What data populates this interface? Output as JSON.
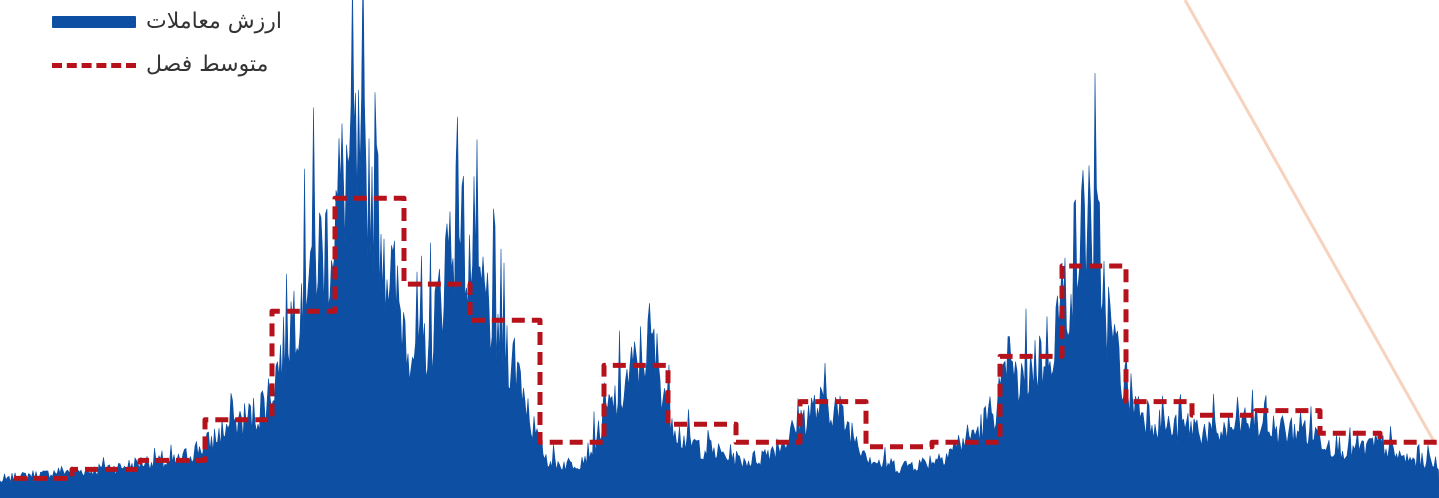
{
  "legend": {
    "placement": "top-left",
    "items": [
      {
        "label": "ارزش معاملات",
        "swatch": "bar",
        "color": "#0d4fa3"
      },
      {
        "label": "متوسط فصل",
        "swatch": "dashed-line",
        "color": "#b5121b"
      }
    ]
  },
  "colors": {
    "area": "#0d4fa3",
    "average": "#b5121b",
    "diagonal": "#f7d2be",
    "background": "#ffffff"
  },
  "chart_data": {
    "type": "area",
    "title": "",
    "xlabel": "",
    "ylabel": "",
    "grid": false,
    "axes_visible": false,
    "ylim": [
      0,
      100
    ],
    "series": [
      {
        "name": "ارزش معاملات",
        "kind": "area",
        "envelope": [
          [
            0,
            3
          ],
          [
            15,
            4
          ],
          [
            30,
            5
          ],
          [
            45,
            5
          ],
          [
            60,
            6
          ],
          [
            75,
            6
          ],
          [
            90,
            6
          ],
          [
            105,
            7
          ],
          [
            120,
            7
          ],
          [
            135,
            8
          ],
          [
            150,
            9
          ],
          [
            165,
            8
          ],
          [
            180,
            9
          ],
          [
            195,
            12
          ],
          [
            210,
            14
          ],
          [
            225,
            18
          ],
          [
            240,
            20
          ],
          [
            255,
            22
          ],
          [
            270,
            28
          ],
          [
            280,
            38
          ],
          [
            290,
            48
          ],
          [
            300,
            58
          ],
          [
            310,
            70
          ],
          [
            320,
            68
          ],
          [
            330,
            72
          ],
          [
            340,
            85
          ],
          [
            350,
            95
          ],
          [
            360,
            92
          ],
          [
            370,
            90
          ],
          [
            380,
            78
          ],
          [
            390,
            62
          ],
          [
            400,
            52
          ],
          [
            410,
            44
          ],
          [
            420,
            40
          ],
          [
            430,
            45
          ],
          [
            440,
            55
          ],
          [
            450,
            75
          ],
          [
            460,
            78
          ],
          [
            470,
            66
          ],
          [
            480,
            58
          ],
          [
            490,
            52
          ],
          [
            500,
            45
          ],
          [
            510,
            40
          ],
          [
            520,
            34
          ],
          [
            530,
            22
          ],
          [
            540,
            12
          ],
          [
            550,
            9
          ],
          [
            560,
            8
          ],
          [
            570,
            8
          ],
          [
            580,
            9
          ],
          [
            590,
            12
          ],
          [
            600,
            18
          ],
          [
            610,
            24
          ],
          [
            620,
            28
          ],
          [
            630,
            33
          ],
          [
            640,
            38
          ],
          [
            650,
            44
          ],
          [
            660,
            34
          ],
          [
            670,
            24
          ],
          [
            680,
            16
          ],
          [
            690,
            14
          ],
          [
            700,
            13
          ],
          [
            710,
            12
          ],
          [
            720,
            11
          ],
          [
            730,
            10
          ],
          [
            740,
            9
          ],
          [
            750,
            9
          ],
          [
            760,
            10
          ],
          [
            770,
            12
          ],
          [
            780,
            14
          ],
          [
            790,
            16
          ],
          [
            800,
            20
          ],
          [
            810,
            23
          ],
          [
            820,
            24
          ],
          [
            830,
            26
          ],
          [
            840,
            22
          ],
          [
            850,
            18
          ],
          [
            860,
            14
          ],
          [
            870,
            10
          ],
          [
            880,
            8
          ],
          [
            890,
            8
          ],
          [
            900,
            7
          ],
          [
            910,
            8
          ],
          [
            920,
            8
          ],
          [
            930,
            9
          ],
          [
            940,
            10
          ],
          [
            950,
            12
          ],
          [
            960,
            14
          ],
          [
            970,
            16
          ],
          [
            980,
            18
          ],
          [
            990,
            22
          ],
          [
            1000,
            28
          ],
          [
            1010,
            32
          ],
          [
            1020,
            30
          ],
          [
            1030,
            36
          ],
          [
            1040,
            38
          ],
          [
            1050,
            42
          ],
          [
            1060,
            52
          ],
          [
            1070,
            62
          ],
          [
            1080,
            72
          ],
          [
            1090,
            82
          ],
          [
            1100,
            66
          ],
          [
            1110,
            46
          ],
          [
            1120,
            36
          ],
          [
            1130,
            28
          ],
          [
            1140,
            24
          ],
          [
            1150,
            22
          ],
          [
            1160,
            20
          ],
          [
            1170,
            18
          ],
          [
            1180,
            18
          ],
          [
            1190,
            19
          ],
          [
            1200,
            18
          ],
          [
            1210,
            17
          ],
          [
            1220,
            17
          ],
          [
            1230,
            18
          ],
          [
            1240,
            19
          ],
          [
            1250,
            21
          ],
          [
            1260,
            19
          ],
          [
            1270,
            18
          ],
          [
            1280,
            18
          ],
          [
            1290,
            17
          ],
          [
            1300,
            19
          ],
          [
            1310,
            17
          ],
          [
            1320,
            16
          ],
          [
            1330,
            14
          ],
          [
            1340,
            13
          ],
          [
            1350,
            12
          ],
          [
            1360,
            12
          ],
          [
            1370,
            13
          ],
          [
            1380,
            14
          ],
          [
            1390,
            12
          ],
          [
            1400,
            10
          ],
          [
            1410,
            9
          ],
          [
            1420,
            9
          ],
          [
            1430,
            9
          ],
          [
            1439,
            8
          ]
        ]
      },
      {
        "name": "متوسط فصل",
        "kind": "step-dashed",
        "steps": [
          {
            "x0": 14,
            "x1": 72,
            "y": 3
          },
          {
            "x0": 72,
            "x1": 140,
            "y": 5
          },
          {
            "x0": 140,
            "x1": 205,
            "y": 7
          },
          {
            "x0": 205,
            "x1": 272,
            "y": 16
          },
          {
            "x0": 272,
            "x1": 335,
            "y": 40
          },
          {
            "x0": 335,
            "x1": 404,
            "y": 65
          },
          {
            "x0": 404,
            "x1": 470,
            "y": 46
          },
          {
            "x0": 470,
            "x1": 540,
            "y": 38
          },
          {
            "x0": 540,
            "x1": 604,
            "y": 11
          },
          {
            "x0": 604,
            "x1": 668,
            "y": 28
          },
          {
            "x0": 668,
            "x1": 736,
            "y": 15
          },
          {
            "x0": 736,
            "x1": 800,
            "y": 11
          },
          {
            "x0": 800,
            "x1": 866,
            "y": 20
          },
          {
            "x0": 866,
            "x1": 932,
            "y": 10
          },
          {
            "x0": 932,
            "x1": 1000,
            "y": 11
          },
          {
            "x0": 1000,
            "x1": 1062,
            "y": 30
          },
          {
            "x0": 1062,
            "x1": 1126,
            "y": 50
          },
          {
            "x0": 1126,
            "x1": 1192,
            "y": 20
          },
          {
            "x0": 1192,
            "x1": 1256,
            "y": 17
          },
          {
            "x0": 1256,
            "x1": 1320,
            "y": 18
          },
          {
            "x0": 1320,
            "x1": 1380,
            "y": 13
          },
          {
            "x0": 1380,
            "x1": 1439,
            "y": 11
          }
        ]
      }
    ]
  }
}
